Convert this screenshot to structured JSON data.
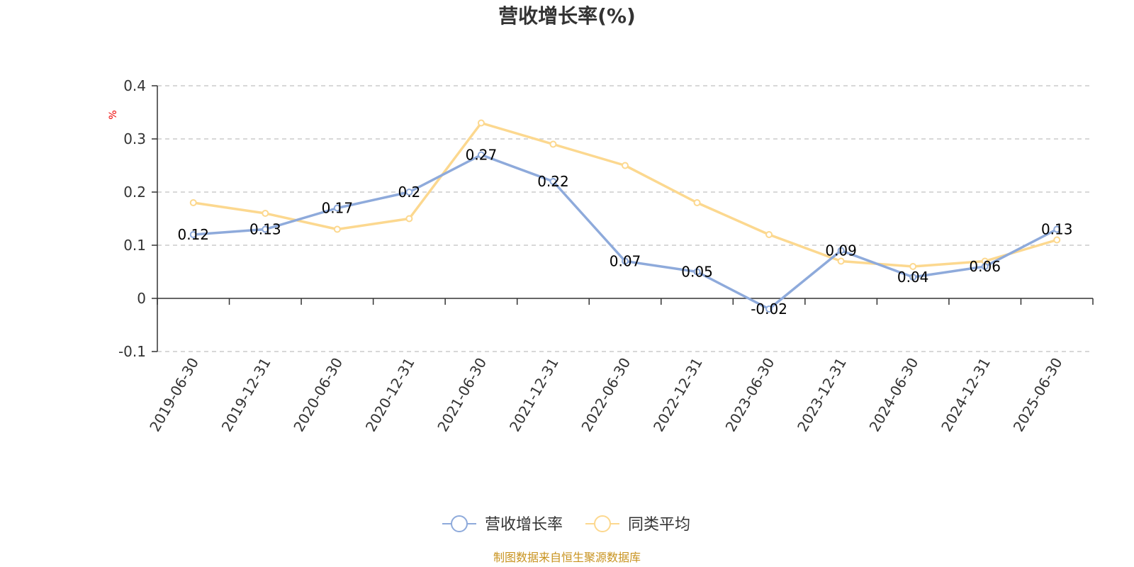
{
  "chart_data": {
    "type": "line",
    "title": "营收增长率(%)",
    "ylabel": "%",
    "categories": [
      "2019-06-30",
      "2019-12-31",
      "2020-06-30",
      "2020-12-31",
      "2021-06-30",
      "2021-12-31",
      "2022-06-30",
      "2022-12-31",
      "2023-06-30",
      "2023-12-31",
      "2024-06-30",
      "2024-12-31",
      "2025-06-30"
    ],
    "series": [
      {
        "name": "营收增长率",
        "color": "#8eaadb",
        "values": [
          0.12,
          0.13,
          0.17,
          0.2,
          0.27,
          0.22,
          0.07,
          0.05,
          -0.02,
          0.09,
          0.04,
          0.06,
          0.13
        ],
        "labels": [
          "0.12",
          "0.13",
          "0.17",
          "0.2",
          "0.27",
          "0.22",
          "0.07",
          "0.05",
          "-0.02",
          "0.09",
          "0.04",
          "0.06",
          "0.13"
        ]
      },
      {
        "name": "同类平均",
        "color": "#fcd88f",
        "values": [
          0.18,
          0.16,
          0.13,
          0.15,
          0.33,
          0.29,
          0.25,
          0.18,
          0.12,
          0.07,
          0.06,
          0.07,
          0.11
        ]
      }
    ],
    "ylim": [
      -0.1,
      0.4
    ],
    "yticks": [
      -0.1,
      0,
      0.1,
      0.2,
      0.3,
      0.4
    ],
    "ytick_labels": [
      "-0.1",
      "0",
      "0.1",
      "0.2",
      "0.3",
      "0.4"
    ],
    "grid": true,
    "legend_position": "bottom-center"
  },
  "source_note": "制图数据来自恒生聚源数据库"
}
